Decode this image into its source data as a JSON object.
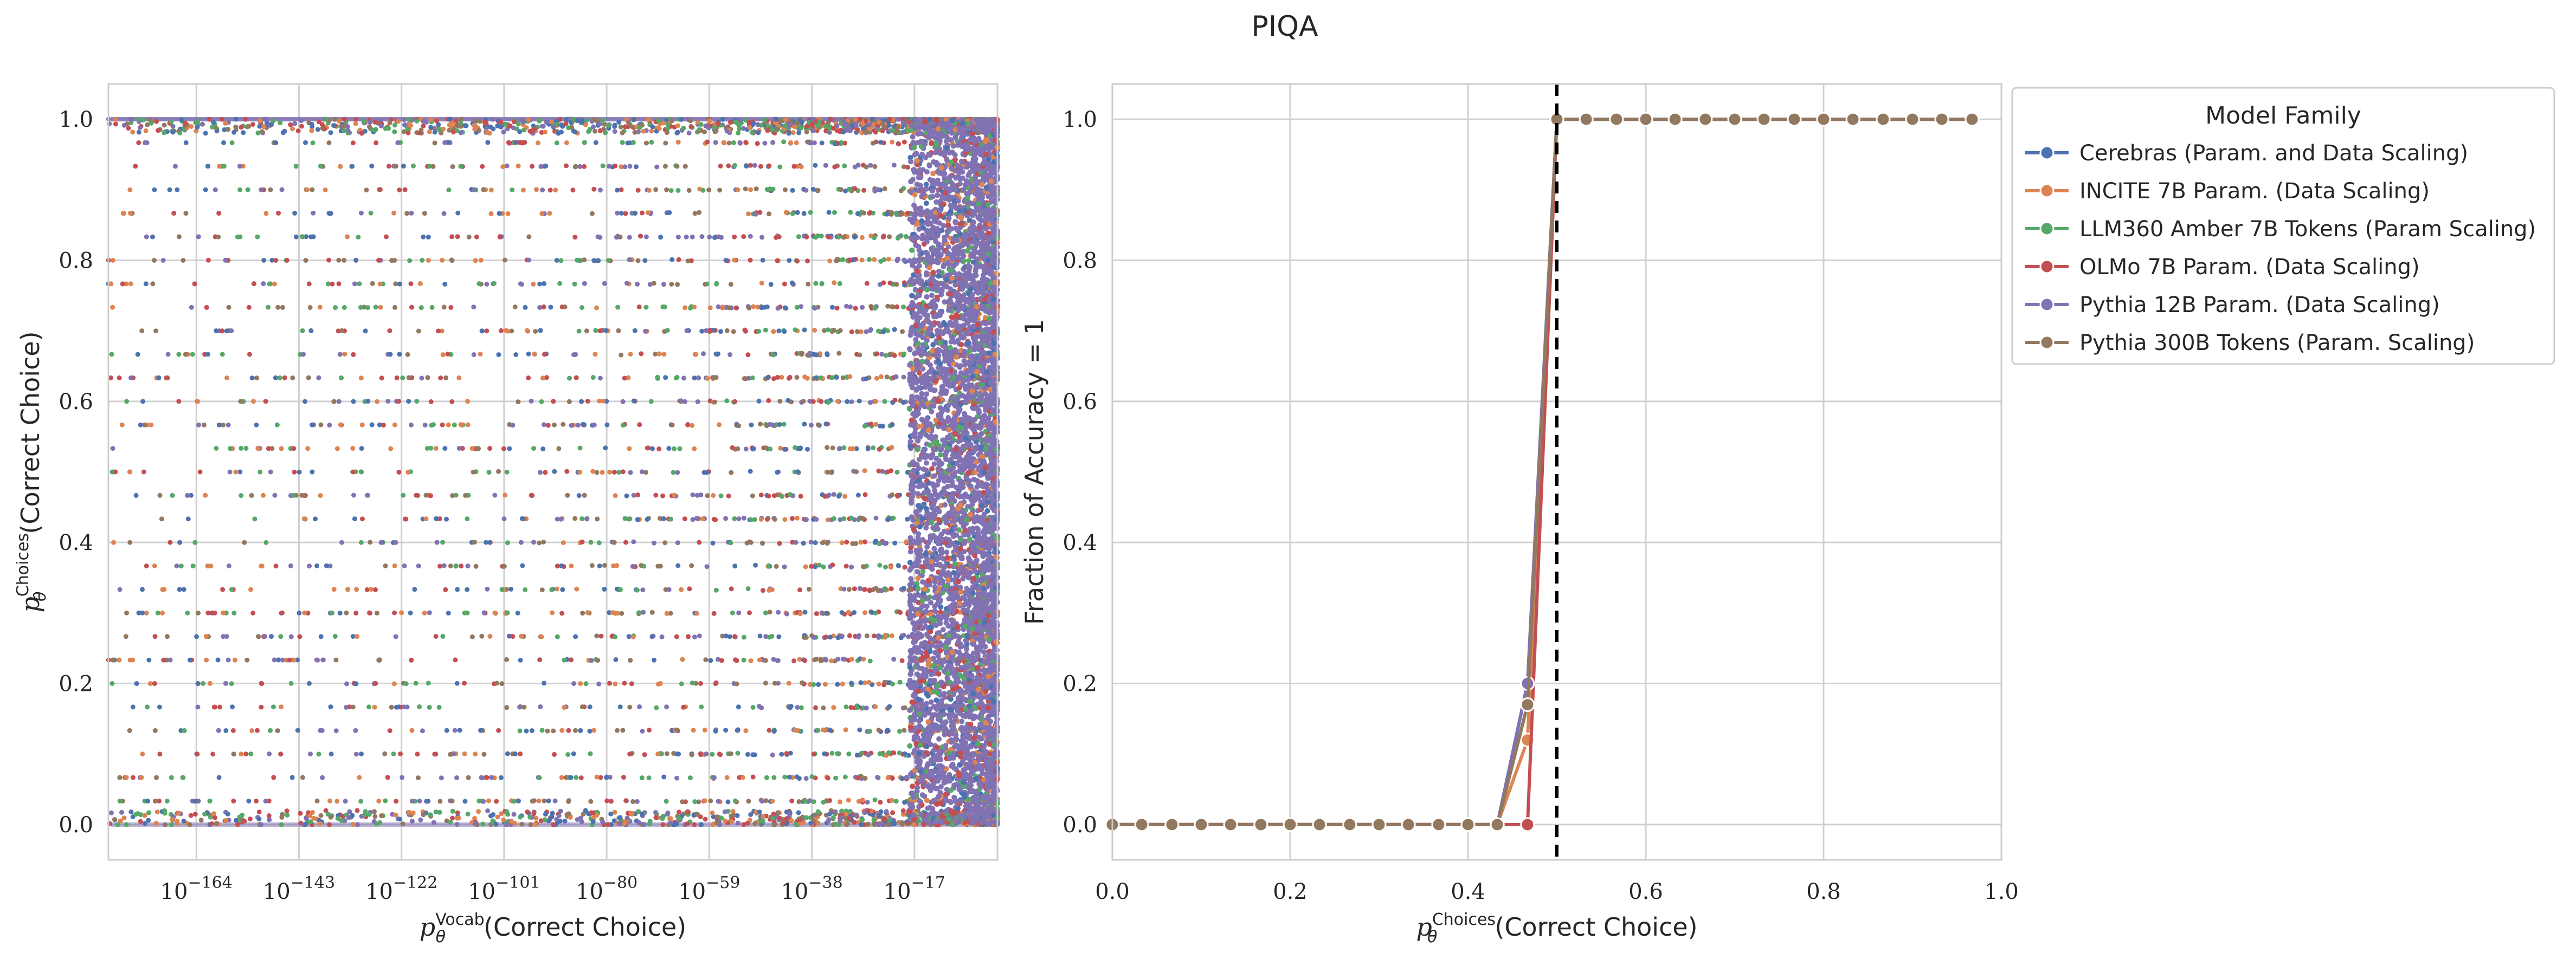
{
  "title": "PIQA",
  "chart_data": [
    {
      "type": "scatter",
      "x_scale": "log",
      "xlabel": "p_θ^Vocab(Correct Choice)",
      "ylabel": "p_θ^Choices(Correct Choice)",
      "x_tick_exponents": [
        -164,
        -143,
        -122,
        -101,
        -80,
        -59,
        -38,
        -17
      ],
      "xlim_log10": [
        -182,
        0
      ],
      "ylim": [
        -0.05,
        1.05
      ],
      "yticks": [
        "0.0",
        "0.2",
        "0.4",
        "0.6",
        "0.8",
        "1.0"
      ],
      "grid": true,
      "series_colors": [
        "#4c72b0",
        "#dd8452",
        "#55a868",
        "#c44e52",
        "#8172b3",
        "#937860"
      ],
      "note": "dense per-sample scatter; points concentrate near y=0, y=1 and at large x"
    },
    {
      "type": "line",
      "xlabel": "p_θ^Choices(Correct Choice)",
      "ylabel": "Fraction of Accuracy = 1",
      "xlim": [
        0,
        1
      ],
      "ylim": [
        -0.05,
        1.05
      ],
      "xticks": [
        "0.0",
        "0.2",
        "0.4",
        "0.6",
        "0.8",
        "1.0"
      ],
      "yticks": [
        "0.0",
        "0.2",
        "0.4",
        "0.6",
        "0.8",
        "1.0"
      ],
      "threshold_line_x": 0.5,
      "grid": true,
      "legend": {
        "title": "Model Family",
        "placement": "outside-right-top",
        "entries": [
          "Cerebras (Param. and Data Scaling)",
          "INCITE 7B Param. (Data Scaling)",
          "LLM360 Amber 7B Tokens (Param Scaling)",
          "OLMo 7B Param. (Data Scaling)",
          "Pythia 12B Param. (Data Scaling)",
          "Pythia 300B Tokens (Param. Scaling)"
        ]
      },
      "x": [
        0.0,
        0.033,
        0.067,
        0.1,
        0.133,
        0.167,
        0.2,
        0.233,
        0.267,
        0.3,
        0.333,
        0.367,
        0.4,
        0.433,
        0.467,
        0.5,
        0.533,
        0.567,
        0.6,
        0.633,
        0.667,
        0.7,
        0.733,
        0.767,
        0.8,
        0.833,
        0.867,
        0.9,
        0.933,
        0.967
      ],
      "series": [
        {
          "name": "Cerebras (Param. and Data Scaling)",
          "color": "#4c72b0",
          "values": [
            0,
            0,
            0,
            0,
            0,
            0,
            0,
            0,
            0,
            0,
            0,
            0,
            0,
            0,
            0.2,
            1,
            1,
            1,
            1,
            1,
            1,
            1,
            1,
            1,
            1,
            1,
            1,
            1,
            1,
            1
          ]
        },
        {
          "name": "INCITE 7B Param. (Data Scaling)",
          "color": "#dd8452",
          "values": [
            0,
            0,
            0,
            0,
            0,
            0,
            0,
            0,
            0,
            0,
            0,
            0,
            0,
            0,
            0.12,
            1,
            1,
            1,
            1,
            1,
            1,
            1,
            1,
            1,
            1,
            1,
            1,
            1,
            1,
            1
          ]
        },
        {
          "name": "LLM360 Amber 7B Tokens (Param Scaling)",
          "color": "#55a868",
          "values": [
            0,
            0,
            0,
            0,
            0,
            0,
            0,
            0,
            0,
            0,
            0,
            0,
            0,
            0,
            0.17,
            1,
            1,
            1,
            1,
            1,
            1,
            1,
            1,
            1,
            1,
            1,
            1,
            1,
            1,
            1
          ]
        },
        {
          "name": "OLMo 7B Param. (Data Scaling)",
          "color": "#c44e52",
          "values": [
            0,
            0,
            0,
            0,
            0,
            0,
            0,
            0,
            0,
            0,
            0,
            0,
            0,
            0,
            0,
            1,
            1,
            1,
            1,
            1,
            1,
            1,
            1,
            1,
            1,
            1,
            1,
            1,
            1,
            1
          ]
        },
        {
          "name": "Pythia 12B Param. (Data Scaling)",
          "color": "#8172b3",
          "values": [
            0,
            0,
            0,
            0,
            0,
            0,
            0,
            0,
            0,
            0,
            0,
            0,
            0,
            0,
            0.2,
            1,
            1,
            1,
            1,
            1,
            1,
            1,
            1,
            1,
            1,
            1,
            1,
            1,
            1,
            1
          ]
        },
        {
          "name": "Pythia 300B Tokens (Param. Scaling)",
          "color": "#937860",
          "values": [
            0,
            0,
            0,
            0,
            0,
            0,
            0,
            0,
            0,
            0,
            0,
            0,
            0,
            0,
            0.17,
            1,
            1,
            1,
            1,
            1,
            1,
            1,
            1,
            1,
            1,
            1,
            1,
            1,
            1,
            1
          ]
        }
      ]
    }
  ]
}
